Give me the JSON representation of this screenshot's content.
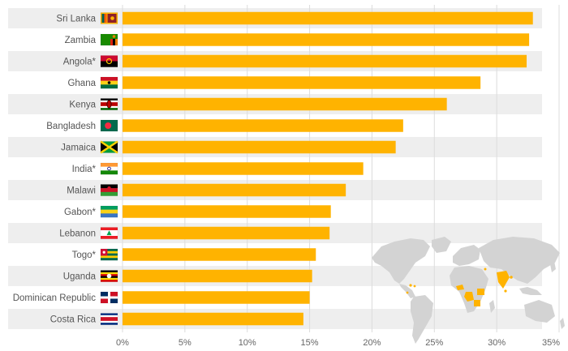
{
  "chart_data": {
    "type": "bar",
    "orientation": "horizontal",
    "title": "",
    "xlabel": "",
    "ylabel": "",
    "categories": [
      "Sri Lanka",
      "Zambia",
      "Angola*",
      "Ghana",
      "Kenya",
      "Bangladesh",
      "Jamaica",
      "India*",
      "Malawi",
      "Gabon*",
      "Lebanon",
      "Togo*",
      "Uganda",
      "Dominican Republic",
      "Costa Rica"
    ],
    "values": [
      32.9,
      32.6,
      32.4,
      28.7,
      26.0,
      22.5,
      21.9,
      19.3,
      17.9,
      16.7,
      16.6,
      15.5,
      15.2,
      15.0,
      14.5
    ],
    "xlim": [
      0,
      35
    ],
    "tick_values": [
      0,
      5,
      10,
      15,
      20,
      25,
      30,
      35
    ],
    "tick_labels": [
      "0%",
      "5%",
      "10%",
      "15%",
      "20%",
      "25%",
      "30%",
      "35%"
    ],
    "grid": true,
    "legend": "none",
    "bar_color": "#ffb300",
    "stripe_color": "#eeeeee",
    "grid_color": "#dcdcdc",
    "map_land_color": "#d3d3d3",
    "map_highlight_color": "#ffb300",
    "flag_icons": [
      "sri-lanka-flag-icon",
      "zambia-flag-icon",
      "angola-flag-icon",
      "ghana-flag-icon",
      "kenya-flag-icon",
      "bangladesh-flag-icon",
      "jamaica-flag-icon",
      "india-flag-icon",
      "malawi-flag-icon",
      "gabon-flag-icon",
      "lebanon-flag-icon",
      "togo-flag-icon",
      "uganda-flag-icon",
      "dominican-republic-flag-icon",
      "costa-rica-flag-icon"
    ]
  }
}
